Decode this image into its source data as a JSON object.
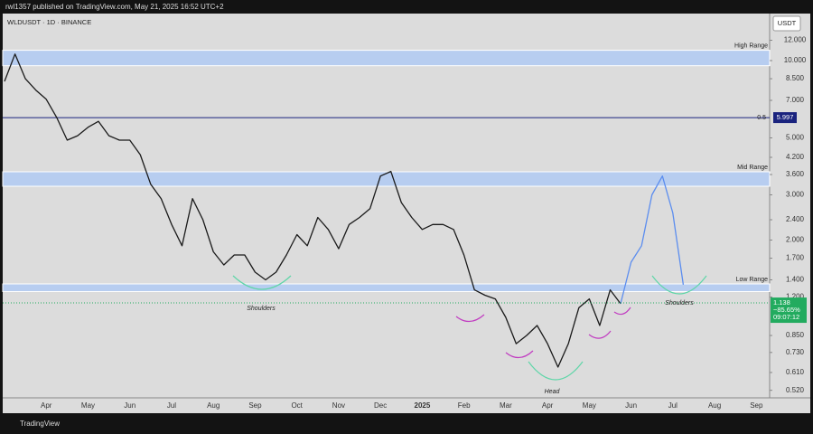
{
  "header": {
    "byline": "rwl1357 published on TradingView.com, May 21, 2025 16:52 UTC+2",
    "brand": "TradingView"
  },
  "chart_data": {
    "type": "line",
    "title": "WLDUSDT · 1D · BINANCE",
    "currency": "USDT",
    "log_scale": true,
    "grid": false,
    "categories": [
      null,
      null,
      null,
      null,
      "Apr",
      null,
      null,
      null,
      "May",
      null,
      null,
      null,
      "Jun",
      null,
      null,
      null,
      "Jul",
      null,
      null,
      null,
      "Aug",
      null,
      null,
      null,
      "Sep",
      null,
      null,
      null,
      "Oct",
      null,
      null,
      null,
      "Nov",
      null,
      null,
      null,
      "Dec",
      null,
      null,
      null,
      "2025",
      null,
      null,
      null,
      "Feb",
      null,
      null,
      null,
      "Mar",
      null,
      null,
      null,
      "Apr",
      null,
      null,
      null,
      "May",
      null,
      null,
      null,
      "Jun",
      null,
      null,
      null,
      "Jul",
      null,
      null,
      null,
      "Aug",
      null,
      null,
      null,
      "Sep",
      null
    ],
    "series": [
      {
        "name": "WLDUSDT",
        "color": "#1a1a1a",
        "values": [
          8.3,
          10.6,
          8.5,
          7.67,
          7.07,
          6.0,
          4.9,
          5.1,
          5.5,
          5.8,
          5.1,
          4.9,
          4.9,
          4.3,
          3.3,
          2.9,
          2.3,
          1.9,
          2.9,
          2.4,
          1.8,
          1.6,
          1.75,
          1.75,
          1.5,
          1.4,
          1.5,
          1.75,
          2.1,
          1.9,
          2.45,
          2.2,
          1.85,
          2.3,
          2.45,
          2.65,
          3.55,
          3.7,
          2.8,
          2.45,
          2.2,
          2.3,
          2.3,
          2.2,
          1.75,
          1.28,
          1.22,
          1.18,
          1.0,
          0.79,
          0.85,
          0.93,
          0.79,
          0.64,
          0.79,
          1.09,
          1.18,
          0.93,
          1.28,
          1.13,
          null,
          null,
          null,
          null,
          null,
          null,
          null,
          null,
          null,
          null,
          null,
          null,
          null,
          null
        ]
      },
      {
        "name": "Projection",
        "color": "#5b8def",
        "values": [
          null,
          null,
          null,
          null,
          null,
          null,
          null,
          null,
          null,
          null,
          null,
          null,
          null,
          null,
          null,
          null,
          null,
          null,
          null,
          null,
          null,
          null,
          null,
          null,
          null,
          null,
          null,
          null,
          null,
          null,
          null,
          null,
          null,
          null,
          null,
          null,
          null,
          null,
          null,
          null,
          null,
          null,
          null,
          null,
          null,
          null,
          null,
          null,
          null,
          null,
          null,
          null,
          null,
          null,
          null,
          null,
          null,
          null,
          null,
          1.13,
          1.64,
          1.9,
          3.0,
          3.55,
          2.55,
          1.34,
          null,
          null,
          null,
          null,
          null,
          null,
          null,
          null
        ]
      }
    ],
    "ylim": [
      0.42,
      15
    ],
    "yticks": [
      {
        "value": 0.52,
        "label": "0.520"
      },
      {
        "value": 0.61,
        "label": "0.610"
      },
      {
        "value": 0.73,
        "label": "0.730"
      },
      {
        "value": 0.85,
        "label": "0.850"
      },
      {
        "value": 1.2,
        "label": "1.200"
      },
      {
        "value": 1.4,
        "label": "1.400"
      },
      {
        "value": 1.7,
        "label": "1.700"
      },
      {
        "value": 2,
        "label": "2.000"
      },
      {
        "value": 2.4,
        "label": "2.400"
      },
      {
        "value": 3,
        "label": "3.000"
      },
      {
        "value": 3.6,
        "label": "3.600"
      },
      {
        "value": 4.2,
        "label": "4.200"
      },
      {
        "value": 5,
        "label": "5.000"
      },
      {
        "value": 7,
        "label": "7.000"
      },
      {
        "value": 8.5,
        "label": "8.500"
      },
      {
        "value": 10,
        "label": "10.000"
      },
      {
        "value": 12,
        "label": "12.000"
      }
    ],
    "zones": [
      {
        "label": "High Range",
        "from": 9.55,
        "to": 10.97,
        "color": "#b7cdf0"
      },
      {
        "label": "Mid Range",
        "from": 3.24,
        "to": 3.69,
        "color": "#b7cdf0"
      },
      {
        "label": "Low Range",
        "from": 1.26,
        "to": 1.35,
        "color": "#b7cdf0"
      }
    ],
    "level": {
      "label": "0.5",
      "value": 5.997,
      "color": "#1a237e"
    },
    "last_price": {
      "value": 1.138,
      "change": "−85.65%",
      "countdown": "09:07:12",
      "color": "#22ab5f"
    },
    "annotations": [
      "Shoulders",
      "Head",
      "Shoulders"
    ]
  }
}
